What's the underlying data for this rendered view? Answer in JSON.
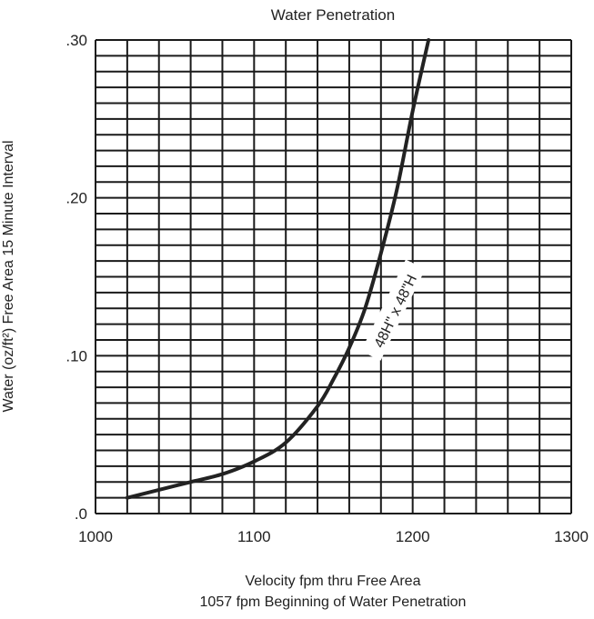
{
  "chart_data": {
    "type": "line",
    "title": "Water Penetration",
    "xlabel": "Velocity fpm thru Free Area",
    "subtitle": "1057 fpm Beginning of Water Penetration",
    "ylabel": "Water (oz/ft²) Free Area 15 Minute Interval",
    "xlim": [
      1000,
      1300
    ],
    "ylim": [
      0,
      0.3
    ],
    "x_ticks": [
      {
        "value": 1000,
        "label": "1000"
      },
      {
        "value": 1100,
        "label": "1100"
      },
      {
        "value": 1200,
        "label": "1200"
      },
      {
        "value": 1300,
        "label": "1300"
      }
    ],
    "y_ticks": [
      {
        "value": 0,
        "label": ".0"
      },
      {
        "value": 0.1,
        "label": ".10"
      },
      {
        "value": 0.2,
        "label": ".20"
      },
      {
        "value": 0.3,
        "label": ".30"
      }
    ],
    "grid": true,
    "x_grid_step": 20,
    "y_grid_step": 0.01,
    "series": [
      {
        "name": "48H\" x 48\"H",
        "color": "#222222",
        "x": [
          1020,
          1040,
          1060,
          1080,
          1100,
          1120,
          1140,
          1150,
          1160,
          1170,
          1180,
          1190,
          1200,
          1210
        ],
        "y": [
          0.01,
          0.015,
          0.02,
          0.025,
          0.033,
          0.045,
          0.068,
          0.085,
          0.105,
          0.13,
          0.165,
          0.205,
          0.255,
          0.3
        ]
      }
    ]
  }
}
